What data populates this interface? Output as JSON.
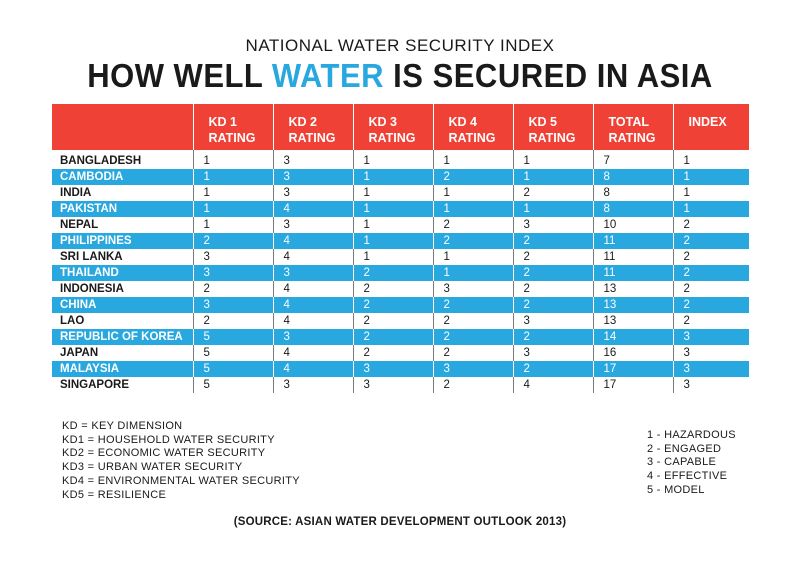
{
  "header": {
    "subtitle": "NATIONAL WATER SECURITY INDEX",
    "title_part1": "HOW WELL ",
    "title_highlight": "WATER",
    "title_part2": " IS SECURED IN ASIA"
  },
  "chart_data": {
    "type": "table",
    "title": "HOW WELL WATER IS SECURED IN ASIA",
    "subtitle": "NATIONAL WATER SECURITY INDEX",
    "columns": [
      "",
      "KD 1\nRATING",
      "KD 2\nRATING",
      "KD 3\nRATING",
      "KD 4\nRATING",
      "KD 5\nRATING",
      "TOTAL\nRATING",
      "INDEX"
    ],
    "rows": [
      [
        "BANGLADESH",
        1,
        3,
        1,
        1,
        1,
        7,
        1
      ],
      [
        "CAMBODIA",
        1,
        3,
        1,
        2,
        1,
        8,
        1
      ],
      [
        "INDIA",
        1,
        3,
        1,
        1,
        2,
        8,
        1
      ],
      [
        "PAKISTAN",
        1,
        4,
        1,
        1,
        1,
        8,
        1
      ],
      [
        "NEPAL",
        1,
        3,
        1,
        2,
        3,
        10,
        2
      ],
      [
        "PHILIPPINES",
        2,
        4,
        1,
        2,
        2,
        11,
        2
      ],
      [
        "SRI LANKA",
        3,
        4,
        1,
        1,
        2,
        11,
        2
      ],
      [
        "THAILAND",
        3,
        3,
        2,
        1,
        2,
        11,
        2
      ],
      [
        "INDONESIA",
        2,
        4,
        2,
        3,
        2,
        13,
        2
      ],
      [
        "CHINA",
        3,
        4,
        2,
        2,
        2,
        13,
        2
      ],
      [
        "LAO",
        2,
        4,
        2,
        2,
        3,
        13,
        2
      ],
      [
        "REPUBLIC OF KOREA",
        5,
        3,
        2,
        2,
        2,
        14,
        3
      ],
      [
        "JAPAN",
        5,
        4,
        2,
        2,
        3,
        16,
        3
      ],
      [
        "MALAYSIA",
        5,
        4,
        3,
        3,
        2,
        17,
        3
      ],
      [
        "SINGAPORE",
        5,
        3,
        3,
        2,
        4,
        17,
        3
      ]
    ]
  },
  "legend_kd": [
    "KD  =  KEY DIMENSION",
    "KD1 = HOUSEHOLD WATER SECURITY",
    "KD2 = ECONOMIC WATER SECURITY",
    "KD3 = URBAN WATER SECURITY",
    "KD4 = ENVIRONMENTAL WATER SECURITY",
    "KD5 = RESILIENCE"
  ],
  "legend_rating": [
    "1 - HAZARDOUS",
    "2 - ENGAGED",
    "3 - CAPABLE",
    "4 - EFFECTIVE",
    "5 - MODEL"
  ],
  "source": "(SOURCE: ASIAN WATER DEVELOPMENT OUTLOOK 2013)",
  "colors": {
    "header_red": "#ef4136",
    "row_blue": "#29a8e0",
    "title_highlight": "#29a8e0"
  }
}
